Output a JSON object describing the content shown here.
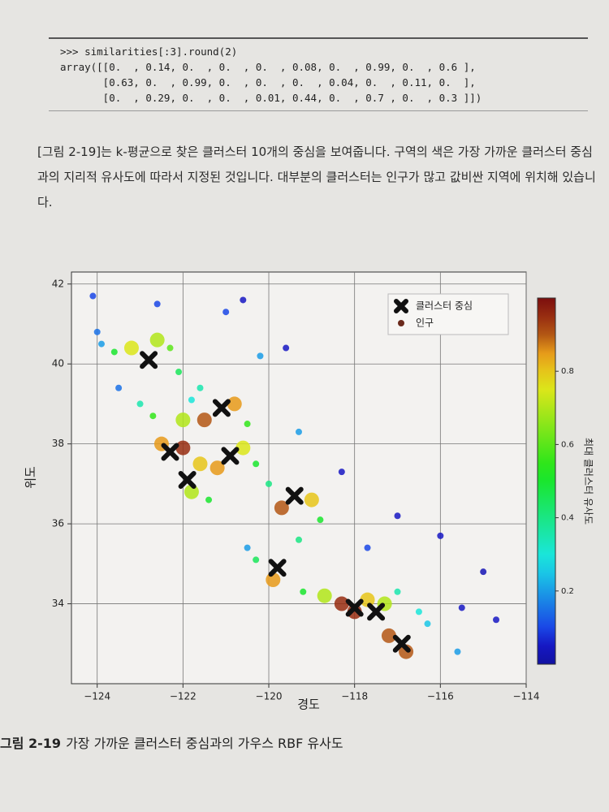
{
  "code": [
    ">>> similarities[:3].round(2)",
    "array([[0.  , 0.14, 0.  , 0.  , 0.  , 0.08, 0.  , 0.99, 0.  , 0.6 ],",
    "       [0.63, 0.  , 0.99, 0.  , 0.  , 0.  , 0.04, 0.  , 0.11, 0.  ],",
    "       [0.  , 0.29, 0.  , 0.  , 0.01, 0.44, 0.  , 0.7 , 0.  , 0.3 ]])"
  ],
  "paragraph": "[그림 2-19]는 k-평균으로 찾은 클러스터 10개의 중심을 보여줍니다. 구역의 색은 가장 가까운 클러스터 중심과의 지리적 유사도에 따라서 지정된 것입니다. 대부분의 클러스터는 인구가 많고 값비싼 지역에 위치해 있습니다.",
  "chart_data": {
    "type": "scatter",
    "xlabel": "경도",
    "ylabel": "위도",
    "xlim": [
      -124.6,
      -114
    ],
    "ylim": [
      32,
      42.3
    ],
    "xticks": [
      {
        "value": -124,
        "label": "−124"
      },
      {
        "value": -122,
        "label": "−122"
      },
      {
        "value": -120,
        "label": "−120"
      },
      {
        "value": -118,
        "label": "−118"
      },
      {
        "value": -116,
        "label": "−116"
      },
      {
        "value": -114,
        "label": "−114"
      }
    ],
    "yticks": [
      34,
      36,
      38,
      40,
      42
    ],
    "grid": true,
    "legend": "upper right",
    "series": [
      {
        "name": "클러스터 중심",
        "color": "#111111",
        "x": [
          -122.8,
          -121.1,
          -122.3,
          -120.9,
          -121.9,
          -119.4,
          -119.8,
          -118.0,
          -117.5,
          -116.9
        ],
        "y": [
          40.1,
          38.9,
          37.8,
          37.7,
          37.1,
          36.7,
          34.9,
          33.9,
          33.8,
          33.0
        ]
      },
      {
        "name": "인구",
        "color": "#6b2a1c",
        "x": [
          -124.1,
          -124.0,
          -123.9,
          -123.6,
          -123.2,
          -122.6,
          -122.3,
          -122.1,
          -121.6,
          -121.8,
          -123.5,
          -123.0,
          -122.7,
          -122.0,
          -121.5,
          -120.8,
          -120.5,
          -122.5,
          -122.0,
          -121.6,
          -121.2,
          -120.6,
          -120.3,
          -121.8,
          -121.4,
          -120.0,
          -119.7,
          -119.0,
          -118.8,
          -119.3,
          -120.5,
          -120.3,
          -119.9,
          -119.2,
          -118.7,
          -118.3,
          -118.0,
          -117.7,
          -117.3,
          -117.0,
          -116.5,
          -117.2,
          -116.8,
          -116.3,
          -115.6,
          -115.5,
          -116.0,
          -117.0,
          -118.3,
          -119.3,
          -120.2,
          -121.0,
          -120.6,
          -122.6,
          -114.7,
          -115.0,
          -119.6,
          -117.7
        ],
        "y": [
          41.7,
          40.8,
          40.5,
          40.3,
          40.4,
          40.6,
          40.4,
          39.8,
          39.4,
          39.1,
          39.4,
          39.0,
          38.7,
          38.6,
          38.6,
          39.0,
          38.5,
          38.0,
          37.9,
          37.5,
          37.4,
          37.9,
          37.5,
          36.8,
          36.6,
          37.0,
          36.4,
          36.6,
          36.1,
          35.6,
          35.4,
          35.1,
          34.6,
          34.3,
          34.2,
          34.0,
          33.8,
          34.1,
          34.0,
          34.3,
          33.8,
          33.2,
          32.8,
          33.5,
          32.8,
          33.9,
          35.7,
          36.2,
          37.3,
          38.3,
          40.2,
          41.3,
          41.6,
          41.5,
          33.6,
          34.8,
          40.4,
          35.4
        ],
        "values": [
          0.1,
          0.15,
          0.2,
          0.5,
          0.75,
          0.7,
          0.6,
          0.45,
          0.35,
          0.3,
          0.15,
          0.35,
          0.55,
          0.7,
          0.9,
          0.85,
          0.55,
          0.85,
          0.95,
          0.8,
          0.85,
          0.75,
          0.5,
          0.7,
          0.5,
          0.4,
          0.9,
          0.8,
          0.5,
          0.4,
          0.2,
          0.45,
          0.85,
          0.5,
          0.7,
          0.95,
          0.95,
          0.8,
          0.7,
          0.35,
          0.3,
          0.9,
          0.9,
          0.25,
          0.2,
          0.05,
          0.05,
          0.05,
          0.05,
          0.2,
          0.2,
          0.1,
          0.05,
          0.1,
          0.05,
          0.03,
          0.05,
          0.1
        ]
      }
    ],
    "colorbar": {
      "label": "최대 클러스터 유사도",
      "lim": [
        0,
        1
      ],
      "ticks": [
        0.2,
        0.4,
        0.6,
        0.8
      ]
    }
  },
  "caption": {
    "label": "그림 2-19",
    "text": "가장 가까운 클러스터 중심과의 가우스 RBF 유사도"
  }
}
